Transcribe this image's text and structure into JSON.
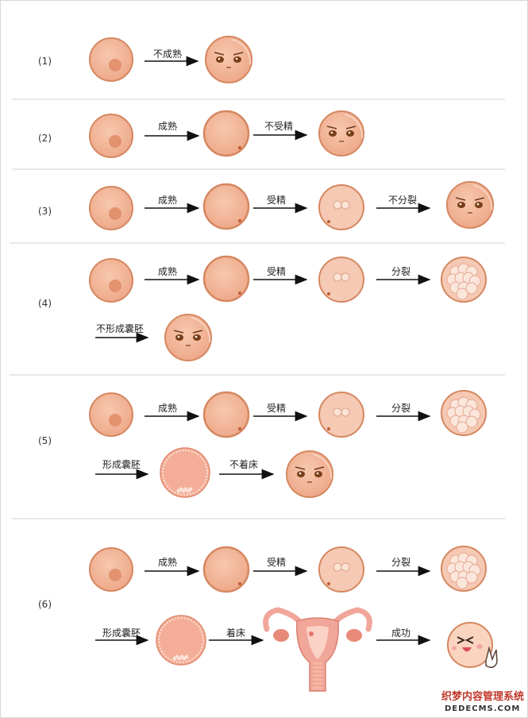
{
  "rows": [
    {
      "label": "(1)",
      "steps": [
        "不成熟"
      ]
    },
    {
      "label": "(2)",
      "steps": [
        "成熟",
        "不受精"
      ]
    },
    {
      "label": "(3)",
      "steps": [
        "成熟",
        "受精",
        "不分裂"
      ]
    },
    {
      "label": "(4)",
      "steps": [
        "成熟",
        "受精",
        "分裂",
        "不形成囊胚"
      ]
    },
    {
      "label": "(5)",
      "steps": [
        "成熟",
        "受精",
        "分裂",
        "形成囊胚",
        "不着床"
      ]
    },
    {
      "label": "(6)",
      "steps": [
        "成熟",
        "受精",
        "分裂",
        "形成囊胚",
        "着床",
        "成功"
      ]
    }
  ],
  "watermark": {
    "line1": "织梦内容管理系统",
    "line2": "DEDECMS.COM"
  },
  "colors": {
    "egg_fill": "#f2b69a",
    "egg_stroke": "#d58760",
    "nucleus": "#e08b66",
    "blastocyst": "#f4ae98",
    "uterus": "#f1a69a",
    "arrow": "#111111"
  },
  "icons": {
    "sad_egg": "sad-egg-face-icon",
    "happy_egg": "happy-egg-face-icon",
    "uterus": "uterus-icon"
  }
}
